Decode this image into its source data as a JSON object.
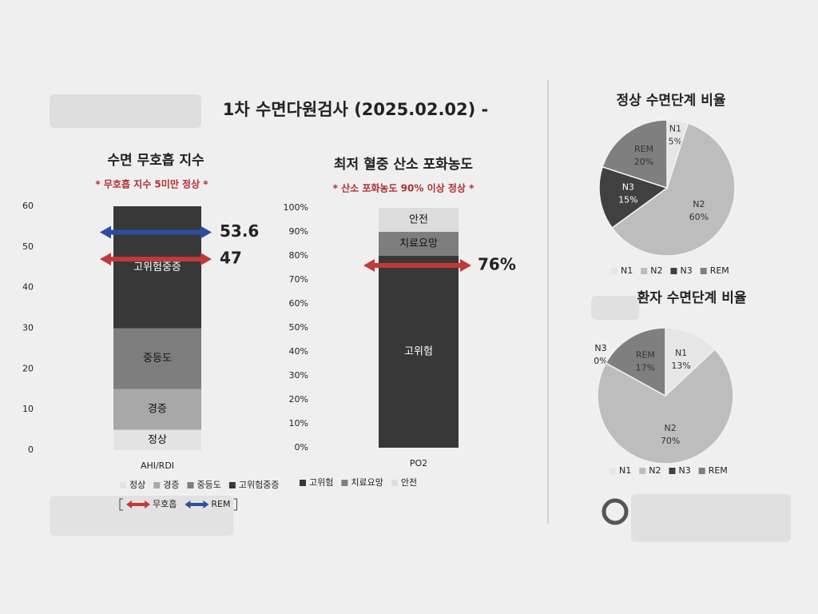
{
  "title": "1차 수면다원검사 (2025.02.02) -",
  "chart_data": [
    {
      "type": "bar",
      "stacked": true,
      "title": "수면 무호흡 지수",
      "subtitle": "* 무호흡 지수 5미만 정상 *",
      "categories": [
        "AHI/RDI"
      ],
      "series": [
        {
          "name": "정상",
          "color": "#e3e3e3",
          "values": [
            5
          ]
        },
        {
          "name": "경증",
          "color": "#a8a8a8",
          "values": [
            10
          ]
        },
        {
          "name": "중등도",
          "color": "#7e7e7e",
          "values": [
            15
          ]
        },
        {
          "name": "고위험중증",
          "color": "#383838",
          "values": [
            30
          ]
        }
      ],
      "markers": [
        {
          "name": "무호흡",
          "color": "#c0393b",
          "value": 47
        },
        {
          "name": "REM",
          "color": "#2e4d9c",
          "value": 53.6
        }
      ],
      "ylim": [
        0,
        60
      ],
      "yticks": [
        0,
        10,
        20,
        30,
        40,
        50,
        60
      ]
    },
    {
      "type": "bar",
      "stacked": true,
      "title": "최저 혈중 산소 포화농도",
      "subtitle": "* 산소 포화농도 90% 이상 정상 *",
      "categories": [
        "PO2"
      ],
      "series": [
        {
          "name": "고위험",
          "color": "#383838",
          "values": [
            80
          ]
        },
        {
          "name": "치료요망",
          "color": "#7e7e7e",
          "values": [
            10
          ]
        },
        {
          "name": "안전",
          "color": "#dcdcdc",
          "values": [
            10
          ]
        }
      ],
      "markers": [
        {
          "color": "#c0393b",
          "value": 76,
          "value_label": "76%"
        }
      ],
      "ylim": [
        0,
        100
      ],
      "yticks": [
        {
          "value": 0,
          "label": "0%"
        },
        {
          "value": 10,
          "label": "10%"
        },
        {
          "value": 20,
          "label": "20%"
        },
        {
          "value": 30,
          "label": "30%"
        },
        {
          "value": 40,
          "label": "40%"
        },
        {
          "value": 50,
          "label": "50%"
        },
        {
          "value": 60,
          "label": "60%"
        },
        {
          "value": 70,
          "label": "70%"
        },
        {
          "value": 80,
          "label": "80%"
        },
        {
          "value": 90,
          "label": "90%"
        },
        {
          "value": 100,
          "label": "100%"
        }
      ]
    },
    {
      "type": "pie",
      "title": "정상 수면단계 비율",
      "categories": [
        "N1",
        "N2",
        "N3",
        "REM"
      ],
      "values": [
        5,
        60,
        15,
        20
      ],
      "value_labels": [
        "5%",
        "60%",
        "15%",
        "20%"
      ],
      "colors": [
        "#e6e6e6",
        "#bdbdbd",
        "#404040",
        "#7f7f7f"
      ]
    },
    {
      "type": "pie",
      "title": "환자 수면단계 비율",
      "categories": [
        "N1",
        "N2",
        "N3",
        "REM"
      ],
      "values": [
        13,
        70,
        0,
        17
      ],
      "value_labels": [
        "13%",
        "70%",
        "0%",
        "17%"
      ],
      "colors": [
        "#e6e6e6",
        "#bdbdbd",
        "#404040",
        "#7f7f7f"
      ]
    }
  ]
}
